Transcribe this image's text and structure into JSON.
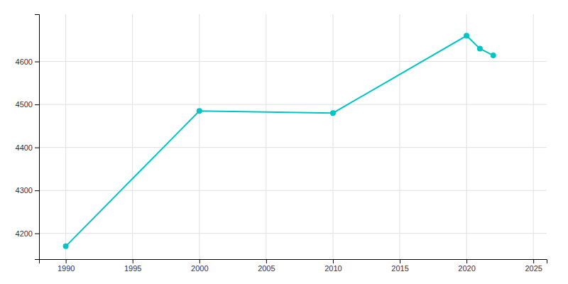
{
  "chart_data": {
    "type": "line",
    "x": [
      1990,
      2000,
      2010,
      2020,
      2021,
      2022
    ],
    "values": [
      4170,
      4485,
      4480,
      4660,
      4630,
      4614
    ],
    "color": "#00C5C5",
    "marker": "circle",
    "xlim": [
      1988,
      2026
    ],
    "ylim": [
      4140,
      4710
    ],
    "xticks": [
      1990,
      1995,
      2000,
      2005,
      2010,
      2015,
      2020,
      2025
    ],
    "yticks": [
      4200,
      4300,
      4400,
      4500,
      4600
    ],
    "grid": true
  }
}
